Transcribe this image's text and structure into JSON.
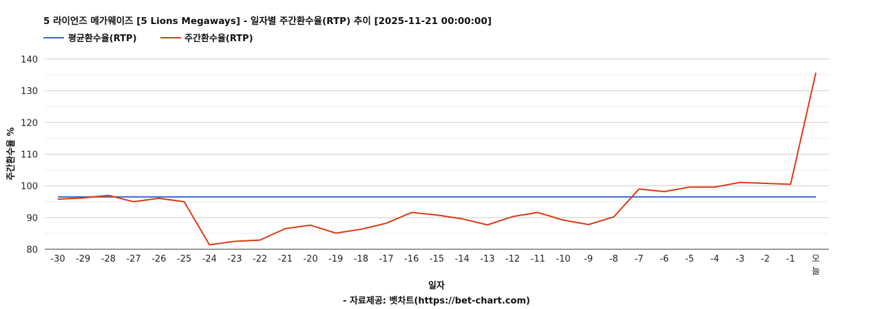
{
  "chart_data": {
    "type": "line",
    "title": "5 라이언즈 메가웨이즈 [5 Lions Megaways] - 일자별 주간환수율(RTP) 추이 [2025-11-21 00:00:00]",
    "xlabel": "일자",
    "ylabel": "주간환수율 %",
    "source": "- 자료제공: 벳차트(https://bet-chart.com)",
    "legend_position": "top-left",
    "grid": true,
    "ylim": [
      80,
      140
    ],
    "yticks": [
      80,
      90,
      100,
      110,
      120,
      130,
      140
    ],
    "categories": [
      "-30",
      "-29",
      "-28",
      "-27",
      "-26",
      "-25",
      "-24",
      "-23",
      "-22",
      "-21",
      "-20",
      "-19",
      "-18",
      "-17",
      "-16",
      "-15",
      "-14",
      "-13",
      "-12",
      "-11",
      "-10",
      "-9",
      "-8",
      "-7",
      "-6",
      "-5",
      "-4",
      "-3",
      "-2",
      "-1",
      "오늘"
    ],
    "series": [
      {
        "name": "평균환수율(RTP)",
        "color": "#3366cc",
        "values": [
          96.5,
          96.5,
          96.5,
          96.5,
          96.5,
          96.5,
          96.5,
          96.5,
          96.5,
          96.5,
          96.5,
          96.5,
          96.5,
          96.5,
          96.5,
          96.5,
          96.5,
          96.5,
          96.5,
          96.5,
          96.5,
          96.5,
          96.5,
          96.5,
          96.5,
          96.5,
          96.5,
          96.5,
          96.5,
          96.5,
          96.5
        ]
      },
      {
        "name": "주간환수율(RTP)",
        "color": "#dc3912",
        "values": [
          95.8,
          96.2,
          97.0,
          95.0,
          96.1,
          95.0,
          81.4,
          82.5,
          82.9,
          86.5,
          87.6,
          85.1,
          86.3,
          88.2,
          91.6,
          90.8,
          89.6,
          87.7,
          90.3,
          91.6,
          89.2,
          87.8,
          90.2,
          99.0,
          98.2,
          99.6,
          99.6,
          101.1,
          100.8,
          100.5,
          135.7
        ]
      }
    ]
  }
}
